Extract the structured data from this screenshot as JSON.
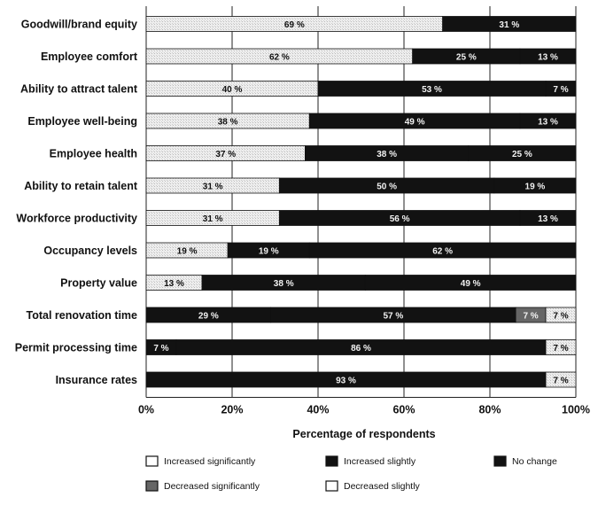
{
  "chart_data": {
    "type": "bar",
    "orientation": "horizontal",
    "stacked": true,
    "xlabel": "Percentage of respondents",
    "ylabel": "",
    "xlim": [
      0,
      100
    ],
    "x_ticks": [
      "0%",
      "20%",
      "40%",
      "60%",
      "80%",
      "100%"
    ],
    "grid": true,
    "legend_position": "bottom",
    "categories": [
      "Goodwill/brand equity",
      "Employee comfort",
      "Ability to attract talent",
      "Employee well-being",
      "Employee health",
      "Ability to retain talent",
      "Workforce productivity",
      "Occupancy levels",
      "Property value",
      "Total renovation time",
      "Permit processing time",
      "Insurance rates"
    ],
    "series": [
      {
        "name": "Increased significantly",
        "color": "#e6e6e6",
        "values": [
          69,
          62,
          40,
          38,
          37,
          31,
          31,
          19,
          13,
          0,
          0,
          0
        ],
        "labels": [
          "69 %",
          "62 %",
          "40 %",
          "38 %",
          "37 %",
          "31 %",
          "31 %",
          "19 %",
          "13 %",
          "",
          "",
          ""
        ]
      },
      {
        "name": "Increased slightly",
        "color": "#121212",
        "values": [
          31,
          25,
          53,
          49,
          38,
          50,
          56,
          19,
          38,
          29,
          7,
          0
        ],
        "labels": [
          "31 %",
          "25 %",
          "53 %",
          "49 %",
          "38 %",
          "50 %",
          "56 %",
          "19 %",
          "38 %",
          "29 %",
          "7 %",
          ""
        ]
      },
      {
        "name": "No change",
        "color": "#121212",
        "values": [
          0,
          13,
          7,
          13,
          25,
          19,
          13,
          62,
          49,
          57,
          86,
          93
        ],
        "labels": [
          "",
          "13 %",
          "7 %",
          "13 %",
          "25 %",
          "19 %",
          "13 %",
          "62 %",
          "49 %",
          "57 %",
          "86 %",
          "93 %"
        ]
      },
      {
        "name": "Decreased significantly",
        "color": "#666666",
        "values": [
          0,
          0,
          0,
          0,
          0,
          0,
          0,
          0,
          0,
          7,
          0,
          0
        ],
        "labels": [
          "",
          "",
          "",
          "",
          "",
          "",
          "",
          "",
          "",
          "7 %",
          "",
          ""
        ]
      },
      {
        "name": "Decreased slightly",
        "color": "#e6e6e6",
        "values": [
          0,
          0,
          0,
          0,
          0,
          0,
          0,
          0,
          0,
          7,
          7,
          7
        ],
        "labels": [
          "",
          "",
          "",
          "",
          "",
          "",
          "",
          "",
          "",
          "7 %",
          "7 %",
          "7 %"
        ]
      }
    ]
  }
}
